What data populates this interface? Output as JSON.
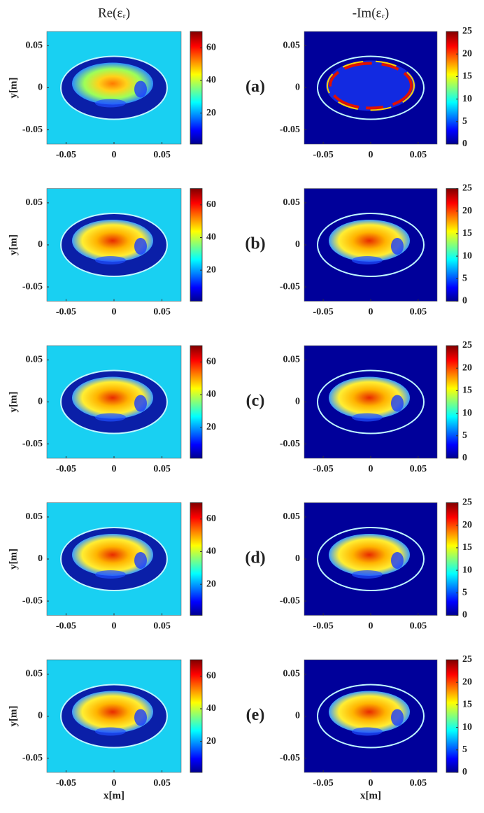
{
  "columns": [
    {
      "title": "Re(εᵣ)",
      "colorbar": {
        "lim": [
          1,
          70
        ],
        "ticks": [
          20,
          40,
          60
        ]
      }
    },
    {
      "title": "-Im(εᵣ)",
      "colorbar": {
        "lim": [
          0,
          25
        ],
        "ticks": [
          0,
          5,
          10,
          15,
          20,
          25
        ]
      }
    }
  ],
  "rows": [
    {
      "label": "(a)"
    },
    {
      "label": "(b)"
    },
    {
      "label": "(c)"
    },
    {
      "label": "(d)"
    },
    {
      "label": "(e)"
    }
  ],
  "xaxis": {
    "label": "x[m]",
    "lim": [
      -0.07,
      0.07
    ],
    "ticks": [
      -0.05,
      0,
      0.05
    ]
  },
  "yaxis": {
    "label": "y[m]",
    "lim": [
      -0.067,
      0.067
    ],
    "ticks": [
      -0.05,
      0,
      0.05
    ]
  }
}
